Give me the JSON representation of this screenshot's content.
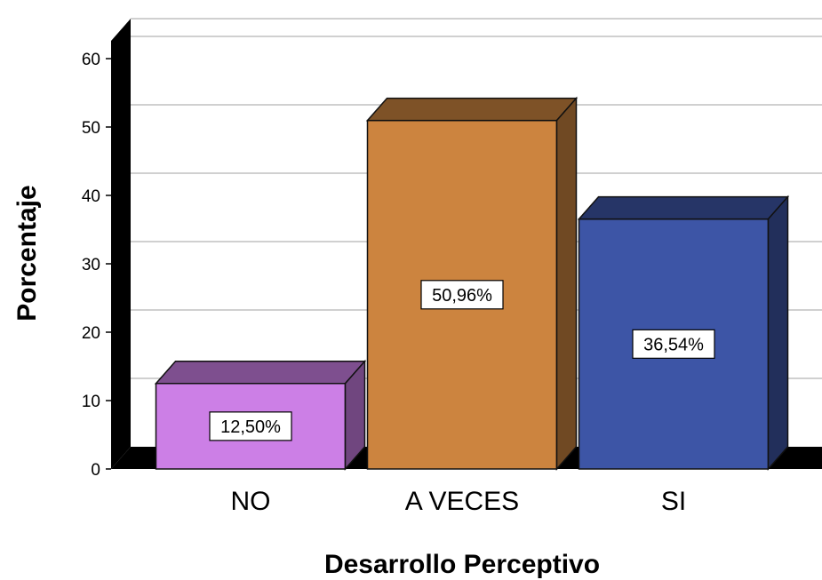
{
  "chart_data": {
    "type": "bar",
    "style": "3d",
    "categories": [
      "NO",
      "A VECES",
      "SI"
    ],
    "values": [
      12.5,
      50.96,
      36.54
    ],
    "data_labels": [
      "12,50%",
      "50,96%",
      "36,54%"
    ],
    "colors": [
      "#CC7FE6",
      "#CC843F",
      "#3D55A6"
    ],
    "xlabel": "Desarrollo Perceptivo",
    "ylabel": "Porcentaje",
    "yticks": [
      "0",
      "10",
      "20",
      "30",
      "40",
      "50",
      "60"
    ],
    "ylim": [
      0,
      60
    ],
    "grid": true
  }
}
